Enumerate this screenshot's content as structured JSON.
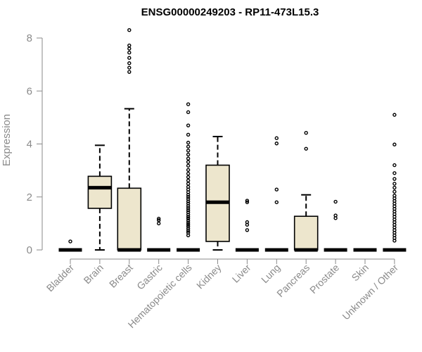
{
  "chart_data": {
    "type": "box",
    "title": "ENSG00000249203 - RP11-473L15.3",
    "xlabel": "",
    "ylabel": "Expression",
    "ylim": [
      0,
      8
    ],
    "yticks": [
      0,
      2,
      4,
      6,
      8
    ],
    "colors": {
      "box_fill": "#ede6cd",
      "line": "#000000",
      "axis": "#8a8a8a"
    },
    "categories": [
      "Bladder",
      "Brain",
      "Breast",
      "Gastric",
      "Hematopoietic cells",
      "Kidney",
      "Liver",
      "Lung",
      "Pancreas",
      "Prostate",
      "Skin",
      "Unknown / Other"
    ],
    "boxes": [
      {
        "q1": 0,
        "median": 0,
        "q3": 0,
        "whisker_low": 0,
        "whisker_high": 0,
        "outliers": [
          0.32
        ]
      },
      {
        "q1": 1.57,
        "median": 2.35,
        "q3": 2.78,
        "whisker_low": 0,
        "whisker_high": 3.95,
        "outliers": []
      },
      {
        "q1": 0,
        "median": 0,
        "q3": 2.33,
        "whisker_low": 0,
        "whisker_high": 5.33,
        "outliers": [
          6.72,
          6.88,
          7.05,
          7.25,
          7.45,
          7.6,
          7.72,
          8.3
        ]
      },
      {
        "q1": 0,
        "median": 0,
        "q3": 0,
        "whisker_low": 0,
        "whisker_high": 0,
        "outliers": [
          1.0,
          1.12,
          1.18
        ]
      },
      {
        "q1": 0,
        "median": 0,
        "q3": 0,
        "whisker_low": 0,
        "whisker_high": 0,
        "outliers": [
          0.55,
          0.65,
          0.72,
          0.8,
          0.88,
          0.95,
          1.02,
          1.1,
          1.18,
          1.25,
          1.33,
          1.42,
          1.5,
          1.58,
          1.66,
          1.75,
          1.83,
          1.92,
          2.0,
          2.08,
          2.18,
          2.28,
          2.38,
          2.5,
          2.62,
          2.75,
          2.88,
          3.02,
          3.18,
          3.32,
          3.45,
          3.6,
          3.75,
          3.9,
          4.05,
          4.35,
          4.7,
          5.2,
          5.5
        ]
      },
      {
        "q1": 0.32,
        "median": 1.8,
        "q3": 3.2,
        "whisker_low": 0,
        "whisker_high": 4.28,
        "outliers": []
      },
      {
        "q1": 0,
        "median": 0,
        "q3": 0,
        "whisker_low": 0,
        "whisker_high": 0,
        "outliers": [
          0.75,
          0.95,
          1.05,
          1.8,
          1.86
        ]
      },
      {
        "q1": 0,
        "median": 0,
        "q3": 0,
        "whisker_low": 0,
        "whisker_high": 0,
        "outliers": [
          1.8,
          2.28,
          4.02,
          4.22
        ]
      },
      {
        "q1": 0,
        "median": 0,
        "q3": 1.27,
        "whisker_low": 0,
        "whisker_high": 2.08,
        "outliers": [
          3.82,
          4.42
        ]
      },
      {
        "q1": 0,
        "median": 0,
        "q3": 0,
        "whisker_low": 0,
        "whisker_high": 0,
        "outliers": [
          1.2,
          1.3,
          1.82
        ]
      },
      {
        "q1": 0,
        "median": 0,
        "q3": 0,
        "whisker_low": 0,
        "whisker_high": 0,
        "outliers": []
      },
      {
        "q1": 0,
        "median": 0,
        "q3": 0,
        "whisker_low": 0,
        "whisker_high": 0,
        "outliers": [
          0.35,
          0.45,
          0.55,
          0.65,
          0.75,
          0.85,
          0.95,
          1.05,
          1.15,
          1.25,
          1.35,
          1.45,
          1.55,
          1.65,
          1.75,
          1.85,
          1.95,
          2.05,
          2.2,
          2.35,
          2.5,
          2.68,
          2.9,
          3.2,
          3.98,
          5.1
        ]
      }
    ]
  }
}
